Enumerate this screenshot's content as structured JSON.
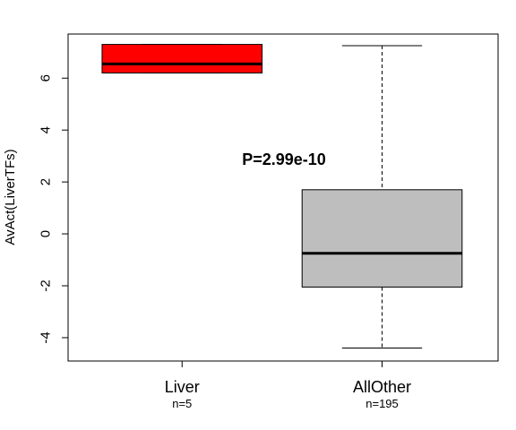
{
  "chart_data": {
    "type": "boxplot",
    "ylabel": "AvAct(LiverTFs)",
    "ylim": [
      -4.9,
      7.7
    ],
    "yticks": [
      -4,
      -2,
      0,
      2,
      4,
      6
    ],
    "annotation": "P=2.99e-10",
    "categories": [
      {
        "name": "Liver",
        "n_label": "n=5",
        "color": "#ff0000",
        "whisker_low": 6.2,
        "q1": 6.2,
        "median": 6.55,
        "q3": 7.3,
        "whisker_high": 7.3
      },
      {
        "name": "AllOther",
        "n_label": "n=195",
        "color": "#bebebe",
        "whisker_low": -4.4,
        "q1": -2.05,
        "median": -0.75,
        "q3": 1.7,
        "whisker_high": 7.25
      }
    ]
  }
}
